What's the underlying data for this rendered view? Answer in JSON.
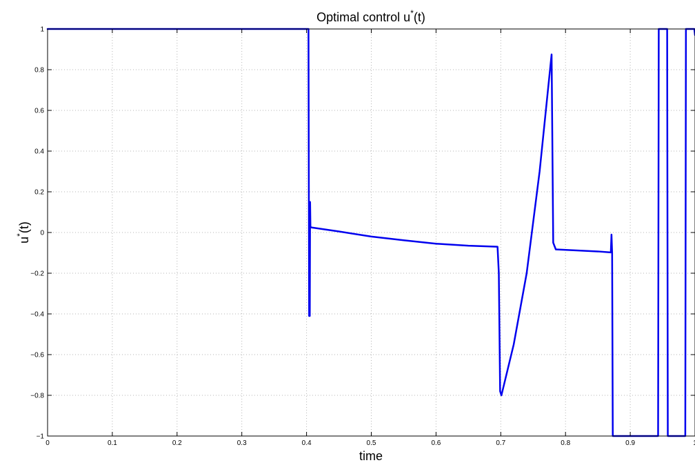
{
  "chart_data": {
    "type": "line",
    "title": "Optimal control u",
    "title_superscript": "*",
    "title_suffix": "(t)",
    "xlabel": "time",
    "ylabel": "u",
    "ylabel_superscript": "*",
    "ylabel_suffix": "(t)",
    "xlim": [
      0,
      1
    ],
    "ylim": [
      -1,
      1
    ],
    "xticks": [
      0,
      0.1,
      0.2,
      0.3,
      0.4,
      0.5,
      0.6,
      0.7,
      0.8,
      0.9,
      1
    ],
    "xtick_labels": [
      "0",
      "0.1",
      "0.2",
      "0.3",
      "0.4",
      "0.5",
      "0.6",
      "0.7",
      "0.8",
      "0.9",
      "1"
    ],
    "yticks": [
      -1,
      -0.8,
      -0.6,
      -0.4,
      -0.2,
      0,
      0.2,
      0.4,
      0.6,
      0.8,
      1
    ],
    "ytick_labels": [
      "−1",
      "−0.8",
      "−0.6",
      "−0.4",
      "−0.2",
      "0",
      "0.2",
      "0.4",
      "0.6",
      "0.8",
      "1"
    ],
    "grid": true,
    "series": [
      {
        "color": "#0000ee",
        "x": [
          0,
          0.402,
          0.403,
          0.404,
          0.405,
          0.4055,
          0.406,
          0.407,
          0.45,
          0.5,
          0.55,
          0.6,
          0.65,
          0.695,
          0.697,
          0.699,
          0.701,
          0.72,
          0.74,
          0.76,
          0.7785,
          0.779,
          0.781,
          0.785,
          0.85,
          0.87,
          0.871,
          0.872,
          0.873,
          0.874,
          0.875,
          0.943,
          0.944,
          0.945,
          0.957,
          0.958,
          0.959,
          0.985,
          0.986,
          0.987,
          0.999,
          1.0
        ],
        "y": [
          1,
          1,
          1,
          -0.41,
          -0.41,
          0.15,
          0.03,
          0.025,
          0.005,
          -0.02,
          -0.038,
          -0.055,
          -0.065,
          -0.07,
          -0.2,
          -0.78,
          -0.8,
          -0.55,
          -0.2,
          0.3,
          0.875,
          0.7,
          -0.05,
          -0.083,
          -0.093,
          -0.098,
          -0.01,
          -0.1,
          -1,
          -1,
          -1,
          -1,
          1,
          1,
          1,
          -1,
          -1,
          -1,
          1,
          1,
          1,
          0.97
        ]
      }
    ]
  }
}
